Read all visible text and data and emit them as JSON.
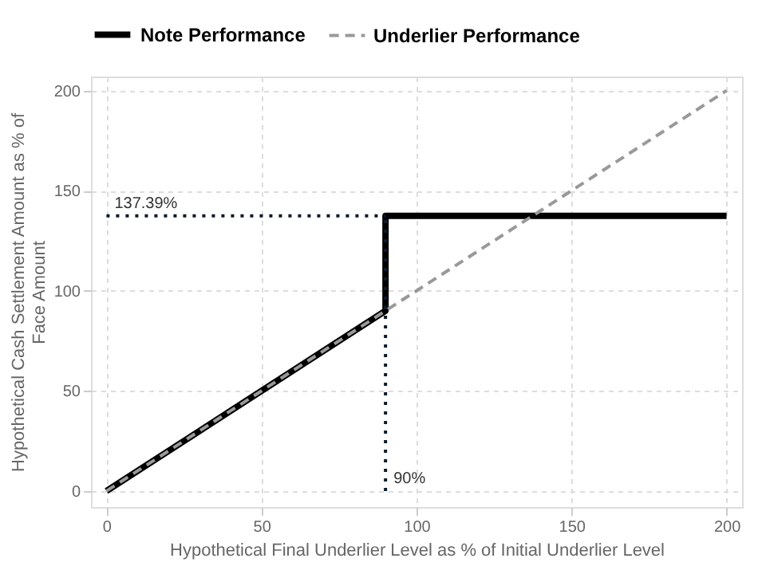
{
  "chart_data": {
    "type": "line",
    "xlabel": "Hypothetical Final Underlier Level as % of Initial Underlier Level",
    "ylabel": "Hypothetical Cash Settlement Amount as % of Face Amount",
    "series": [
      {
        "name": "Note Performance",
        "color": "#000000",
        "line_style": "solid",
        "x": [
          0,
          90,
          90,
          200
        ],
        "values": [
          0,
          90,
          137.39,
          137.39
        ]
      },
      {
        "name": "Underlier Performance",
        "color": "#999999",
        "line_style": "dashed",
        "x": [
          0,
          200
        ],
        "values": [
          0,
          200
        ]
      },
      {
        "color": "#0d1b2a",
        "line_style": "dotted",
        "x": [
          0,
          90
        ],
        "values": [
          137.39,
          137.39
        ]
      },
      {
        "color": "#0d1b2a",
        "line_style": "dotted",
        "x": [
          90,
          90
        ],
        "values": [
          0,
          137.39
        ]
      }
    ],
    "annotations": [
      {
        "text": "137.39%",
        "x": 0,
        "y": 137.39
      },
      {
        "text": "90%",
        "x": 90,
        "y": 0
      }
    ],
    "xlim": [
      -5,
      205
    ],
    "ylim": [
      -8,
      207
    ],
    "xticks": [
      0,
      50,
      100,
      150,
      200
    ],
    "yticks": [
      0,
      50,
      100,
      150,
      200
    ],
    "grid": true,
    "legend": "top"
  }
}
